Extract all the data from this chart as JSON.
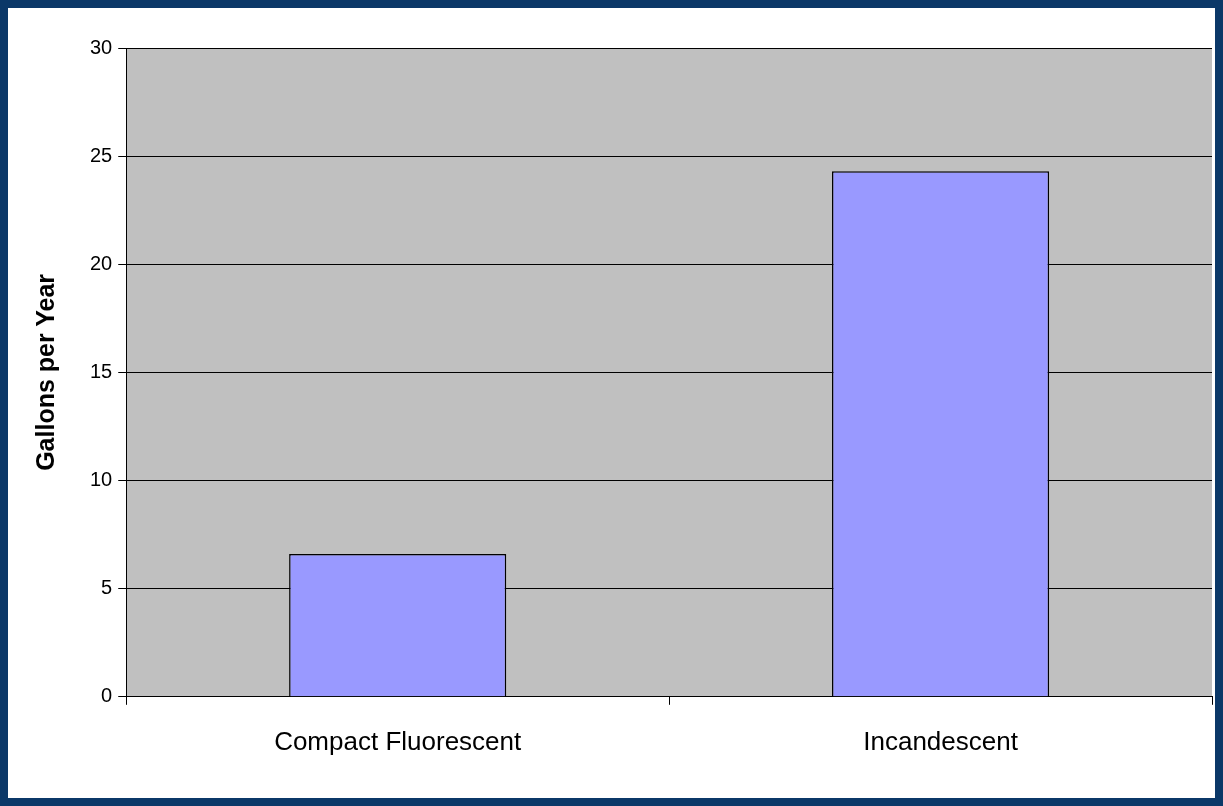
{
  "chart_data": {
    "type": "bar",
    "ylabel": "Gallons per Year",
    "categories": [
      "Compact Fluorescent",
      "Incandescent"
    ],
    "values": [
      6.6,
      24.3
    ],
    "color": "#9999ff",
    "ylim": [
      0,
      30
    ],
    "yticks": [
      0,
      5,
      10,
      15,
      20,
      25,
      30
    ],
    "grid": "y"
  }
}
